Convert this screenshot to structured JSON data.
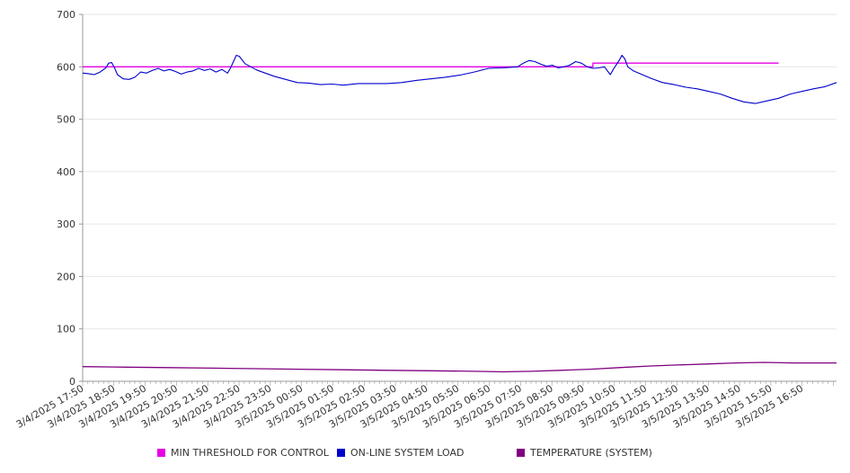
{
  "chart_data": {
    "type": "line",
    "ylim": [
      0,
      700
    ],
    "y_ticks": [
      0,
      100,
      200,
      300,
      400,
      500,
      600,
      700
    ],
    "grid": "horizontal",
    "legend_position": "bottom",
    "x_tick_labels": [
      "3/4/2025 17:50",
      "3/4/2025 18:50",
      "3/4/2025 19:50",
      "3/4/2025 20:50",
      "3/4/2025 21:50",
      "3/4/2025 22:50",
      "3/4/2025 23:50",
      "3/5/2025 00:50",
      "3/5/2025 01:50",
      "3/5/2025 02:50",
      "3/5/2025 03:50",
      "3/5/2025 04:50",
      "3/5/2025 05:50",
      "3/5/2025 06:50",
      "3/5/2025 07:50",
      "3/5/2025 08:50",
      "3/5/2025 09:50",
      "3/5/2025 10:50",
      "3/5/2025 11:50",
      "3/5/2025 12:50",
      "3/5/2025 13:50",
      "3/5/2025 14:50",
      "3/5/2025 15:50",
      "3/5/2025 16:50"
    ],
    "x_range_hours": [
      0,
      24
    ],
    "series": [
      {
        "name": "MIN THRESHOLD FOR CONTROL",
        "color": "#e600e6",
        "points": [
          [
            0,
            600
          ],
          [
            17.6,
            600
          ],
          [
            17.6,
            607
          ],
          [
            24,
            607
          ]
        ]
      },
      {
        "name": "ON-LINE SYSTEM LOAD",
        "color": "#0000cc",
        "points": [
          [
            0,
            588
          ],
          [
            0.2,
            587
          ],
          [
            0.4,
            585
          ],
          [
            0.6,
            590
          ],
          [
            0.8,
            598
          ],
          [
            0.9,
            607
          ],
          [
            1.0,
            608
          ],
          [
            1.1,
            598
          ],
          [
            1.2,
            585
          ],
          [
            1.4,
            577
          ],
          [
            1.6,
            576
          ],
          [
            1.8,
            580
          ],
          [
            2.0,
            590
          ],
          [
            2.2,
            588
          ],
          [
            2.4,
            593
          ],
          [
            2.6,
            597
          ],
          [
            2.8,
            592
          ],
          [
            3.0,
            595
          ],
          [
            3.2,
            591
          ],
          [
            3.4,
            586
          ],
          [
            3.6,
            590
          ],
          [
            3.8,
            592
          ],
          [
            4.0,
            597
          ],
          [
            4.2,
            593
          ],
          [
            4.4,
            596
          ],
          [
            4.6,
            590
          ],
          [
            4.8,
            595
          ],
          [
            5.0,
            588
          ],
          [
            5.1,
            598
          ],
          [
            5.2,
            610
          ],
          [
            5.3,
            622
          ],
          [
            5.4,
            620
          ],
          [
            5.6,
            606
          ],
          [
            5.8,
            600
          ],
          [
            6.0,
            594
          ],
          [
            6.3,
            588
          ],
          [
            6.6,
            582
          ],
          [
            7.0,
            576
          ],
          [
            7.4,
            570
          ],
          [
            7.8,
            569
          ],
          [
            8.2,
            566
          ],
          [
            8.6,
            567
          ],
          [
            9.0,
            565
          ],
          [
            9.5,
            568
          ],
          [
            10.0,
            568
          ],
          [
            10.5,
            568
          ],
          [
            11.0,
            570
          ],
          [
            11.5,
            574
          ],
          [
            12.0,
            577
          ],
          [
            12.5,
            580
          ],
          [
            13.0,
            584
          ],
          [
            13.5,
            590
          ],
          [
            14.0,
            597
          ],
          [
            14.5,
            598
          ],
          [
            15.0,
            600
          ],
          [
            15.2,
            607
          ],
          [
            15.4,
            612
          ],
          [
            15.6,
            610
          ],
          [
            15.8,
            605
          ],
          [
            16.0,
            601
          ],
          [
            16.2,
            603
          ],
          [
            16.4,
            598
          ],
          [
            16.6,
            600
          ],
          [
            16.8,
            603
          ],
          [
            17.0,
            610
          ],
          [
            17.2,
            607
          ],
          [
            17.4,
            600
          ],
          [
            17.6,
            597
          ],
          [
            17.8,
            598
          ],
          [
            18.0,
            600
          ],
          [
            18.1,
            592
          ],
          [
            18.2,
            585
          ],
          [
            18.3,
            595
          ],
          [
            18.5,
            612
          ],
          [
            18.6,
            622
          ],
          [
            18.7,
            615
          ],
          [
            18.8,
            600
          ],
          [
            19.0,
            592
          ],
          [
            19.3,
            585
          ],
          [
            19.6,
            578
          ],
          [
            20.0,
            570
          ],
          [
            20.4,
            566
          ],
          [
            20.8,
            561
          ],
          [
            21.2,
            558
          ],
          [
            21.6,
            553
          ],
          [
            22.0,
            548
          ],
          [
            22.4,
            540
          ],
          [
            22.8,
            533
          ],
          [
            23.2,
            530
          ],
          [
            23.6,
            535
          ],
          [
            24.0,
            540
          ],
          [
            24.4,
            548
          ],
          [
            24.8,
            553
          ],
          [
            25.2,
            558
          ],
          [
            25.6,
            562
          ],
          [
            26.0,
            570
          ]
        ]
      },
      {
        "name": "TEMPERATURE (SYSTEM)",
        "color": "#800080",
        "points": [
          [
            0,
            28
          ],
          [
            1.5,
            27
          ],
          [
            3,
            26
          ],
          [
            4.5,
            25
          ],
          [
            6,
            24
          ],
          [
            7.5,
            23
          ],
          [
            9,
            22
          ],
          [
            10.5,
            21
          ],
          [
            12,
            20
          ],
          [
            13.5,
            19
          ],
          [
            14.5,
            18
          ],
          [
            15.5,
            19
          ],
          [
            16.5,
            21
          ],
          [
            17.5,
            23
          ],
          [
            18.5,
            26
          ],
          [
            19.5,
            29
          ],
          [
            20.5,
            31
          ],
          [
            21.5,
            33
          ],
          [
            22.5,
            35
          ],
          [
            23.5,
            36
          ],
          [
            24.5,
            35
          ],
          [
            26,
            35
          ]
        ]
      }
    ]
  },
  "legend": {
    "items": [
      {
        "label": "MIN THRESHOLD FOR CONTROL",
        "color": "#e600e6"
      },
      {
        "label": "ON-LINE SYSTEM LOAD",
        "color": "#0000cc"
      },
      {
        "label": "TEMPERATURE (SYSTEM)",
        "color": "#800080"
      }
    ]
  }
}
